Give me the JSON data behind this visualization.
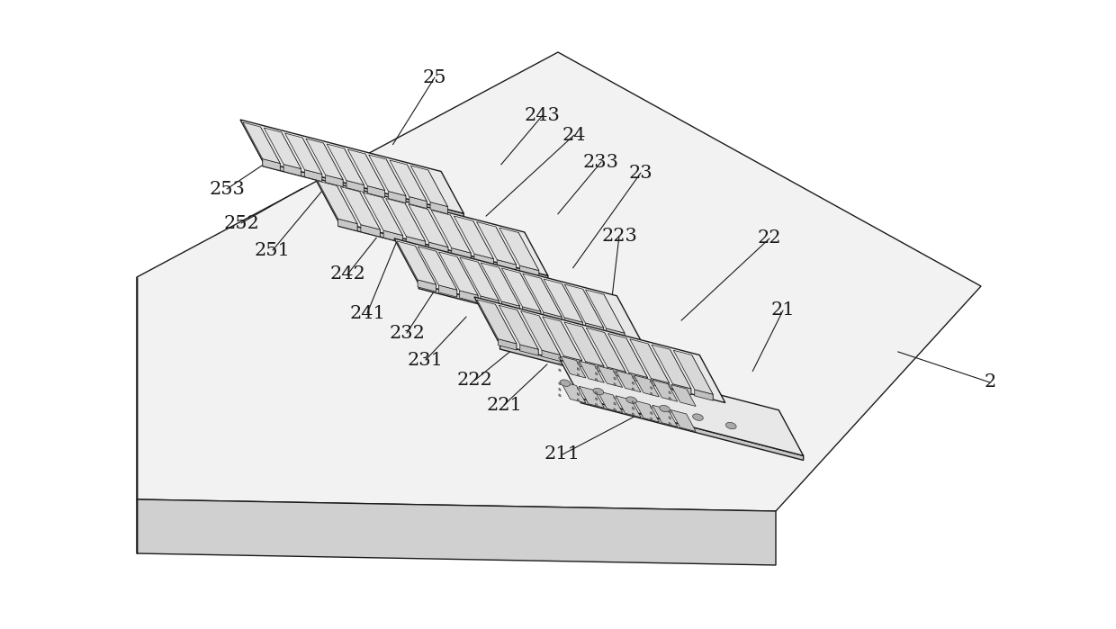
{
  "bg_color": "#ffffff",
  "line_color": "#1a1a1a",
  "platform_top": "#f2f2f2",
  "platform_front": "#d0d0d0",
  "platform_right": "#e0e0e0",
  "tray_top": "#e8e8e8",
  "tray_side": "#c8c8c8",
  "block_top": "#e0e0e0",
  "block_right": "#b8b8b8",
  "block_front": "#c8c8c8",
  "ic_top": "#cccccc",
  "ic_body": "#b0b0b0",
  "label_fontsize": 15,
  "lw": 1.0,
  "tlw": 0.5,
  "labels": [
    [
      "2",
      1100,
      425,
      995,
      390
    ],
    [
      "21",
      870,
      345,
      835,
      415
    ],
    [
      "211",
      625,
      505,
      720,
      455
    ],
    [
      "22",
      855,
      265,
      755,
      358
    ],
    [
      "221",
      560,
      450,
      610,
      403
    ],
    [
      "222",
      527,
      423,
      570,
      388
    ],
    [
      "223",
      688,
      262,
      678,
      348
    ],
    [
      "23",
      712,
      192,
      635,
      300
    ],
    [
      "231",
      473,
      400,
      520,
      350
    ],
    [
      "232",
      452,
      370,
      488,
      315
    ],
    [
      "233",
      668,
      180,
      618,
      240
    ],
    [
      "24",
      638,
      150,
      538,
      242
    ],
    [
      "241",
      408,
      348,
      445,
      258
    ],
    [
      "242",
      386,
      305,
      420,
      262
    ],
    [
      "243",
      603,
      128,
      555,
      185
    ],
    [
      "25",
      483,
      86,
      435,
      163
    ],
    [
      "251",
      303,
      278,
      368,
      200
    ],
    [
      "252",
      268,
      248,
      338,
      208
    ],
    [
      "253",
      252,
      210,
      315,
      168
    ]
  ]
}
